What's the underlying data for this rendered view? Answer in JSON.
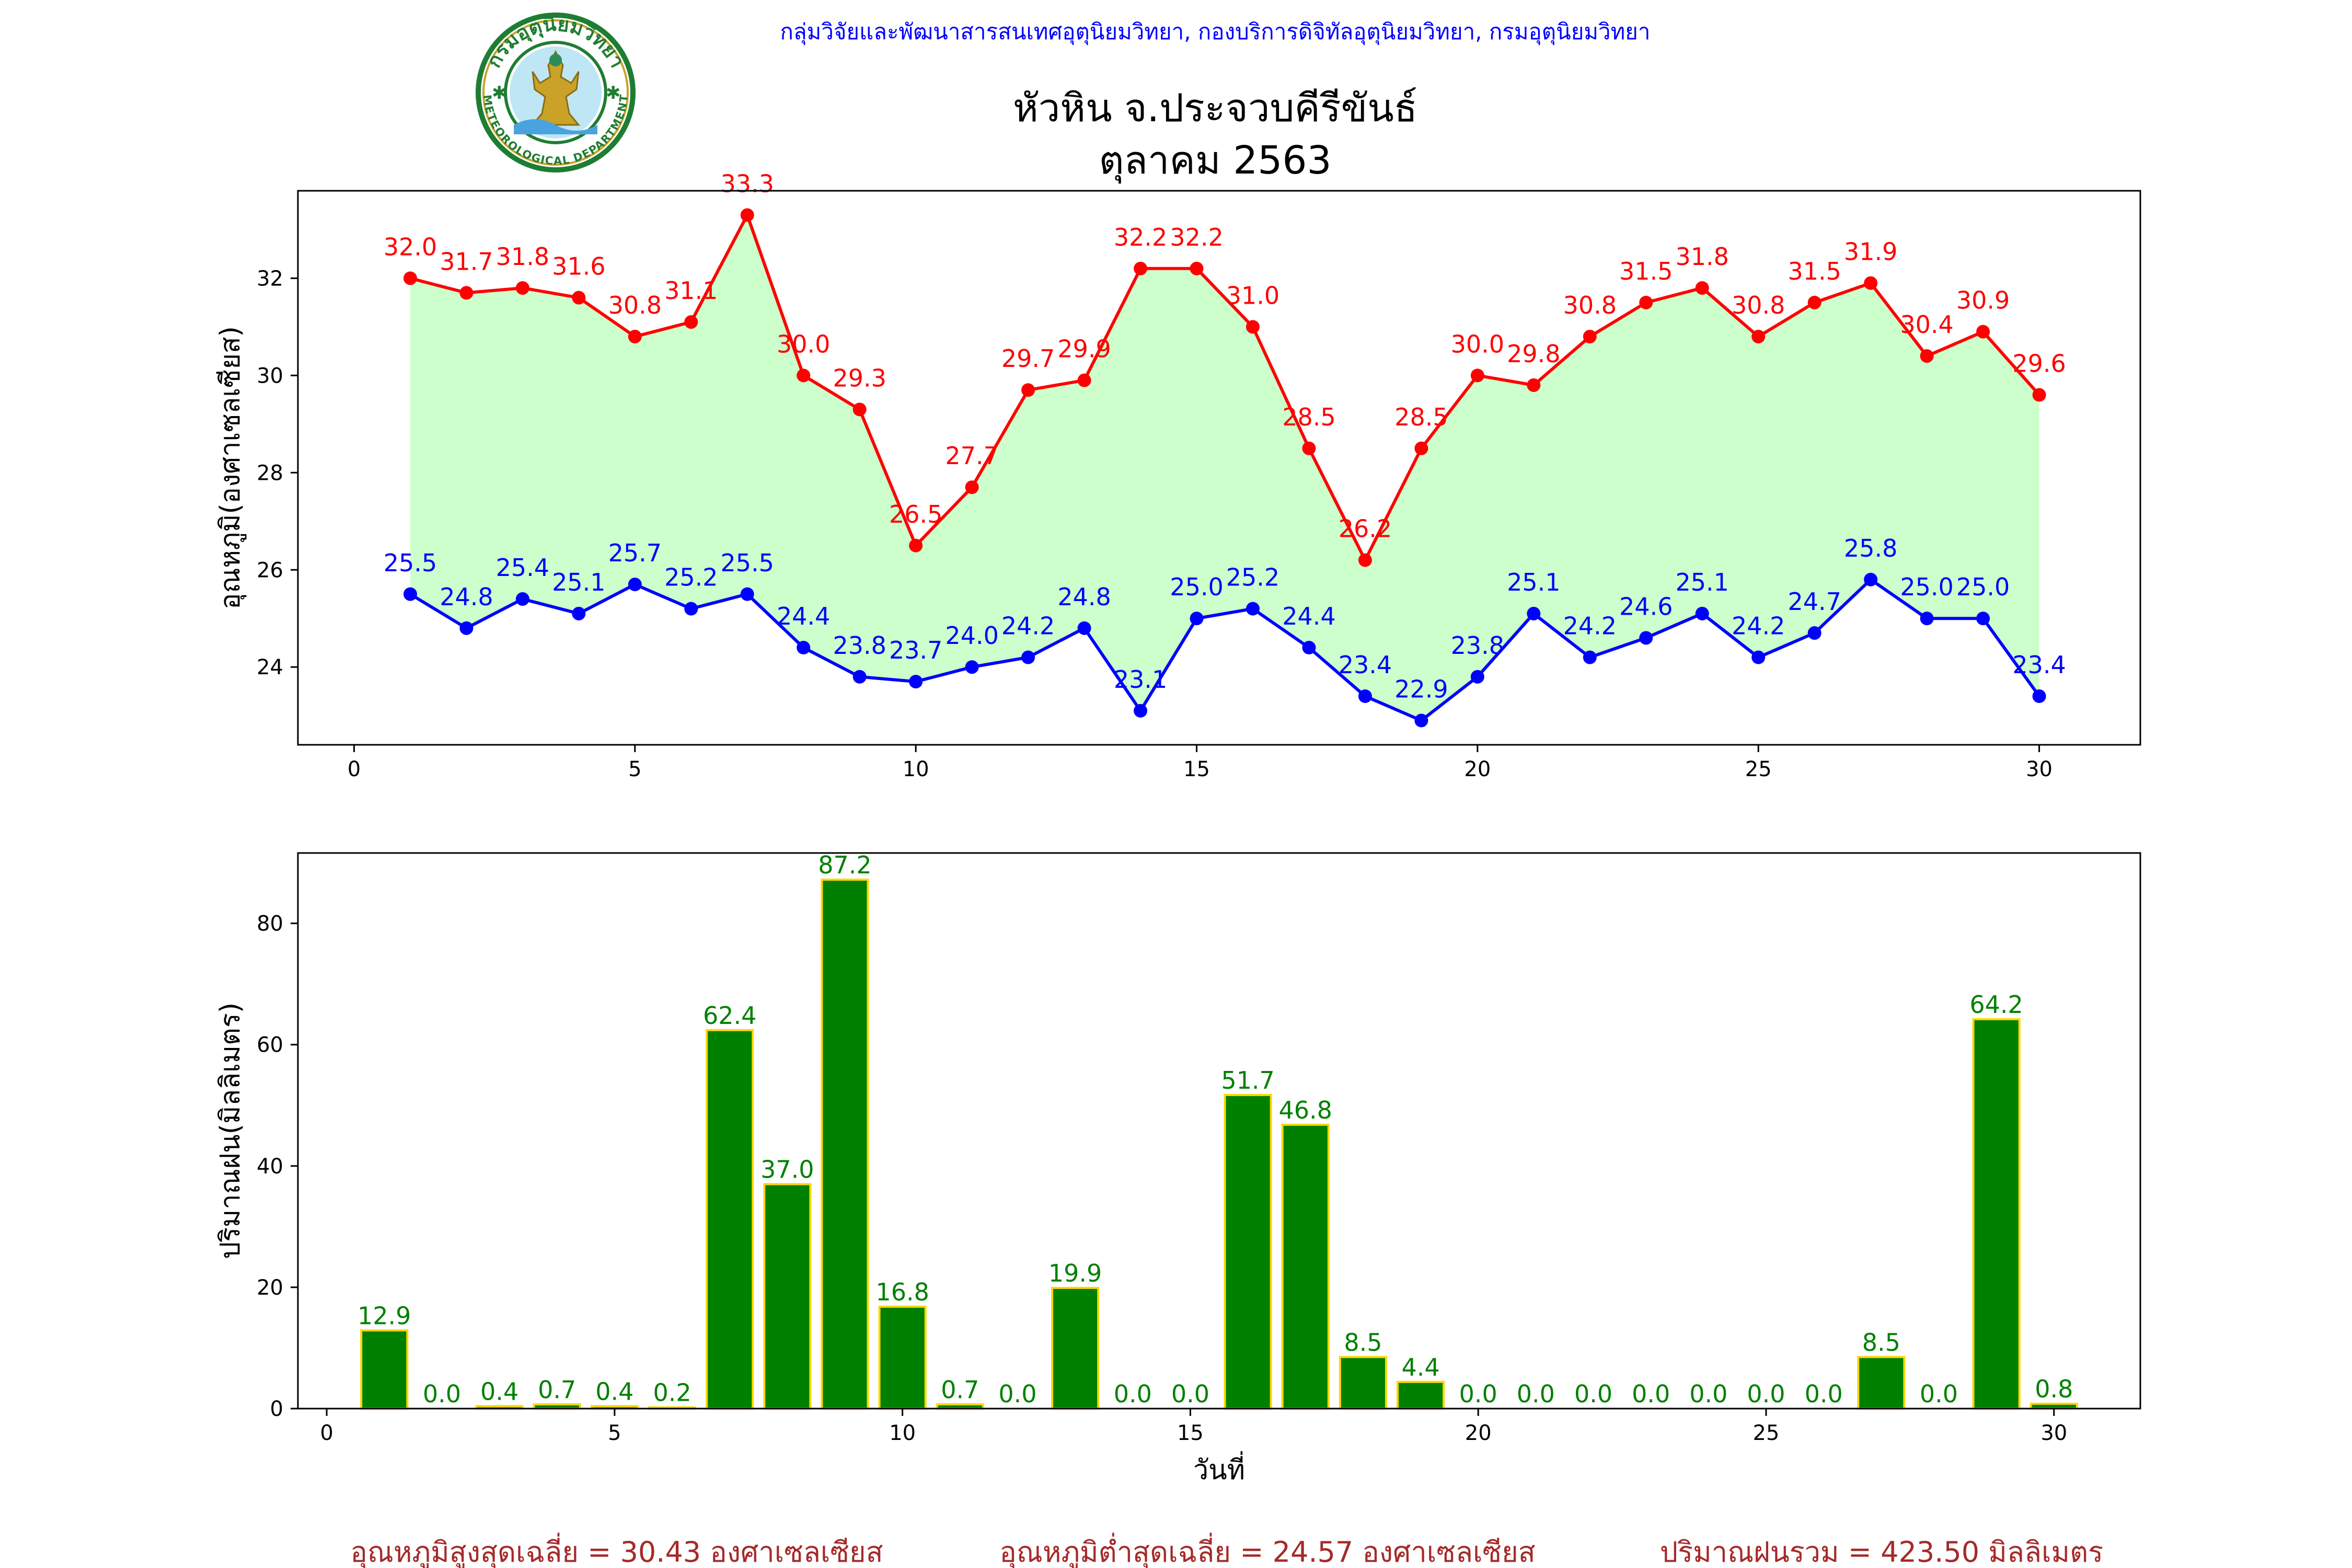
{
  "header": {
    "organization": "กลุ่มวิจัยและพัฒนาสารสนเทศอุตุนิยมวิทยา, กองบริการดิจิทัลอุตุนิยมวิทยา, กรมอุตุนิยมวิทยา",
    "title_line1": "หัวหิน จ.ประจวบคีรีขันธ์",
    "title_line2": "ตุลาคม 2563",
    "logo": {
      "top_text": "กรมอุตุนิยมวิทยา",
      "bottom_text": "METEOROLOGICAL DEPARTMENT",
      "ring_color": "#1e7d32",
      "figure_color": "#c9a227"
    }
  },
  "chart_data": [
    {
      "type": "line",
      "ylabel": "อุณหภูมิ(องศาเซลเซียส)",
      "xlabel": "",
      "xlim": [
        -1,
        31.8
      ],
      "ylim": [
        22.4,
        33.8
      ],
      "xticks": [
        0,
        5,
        10,
        15,
        20,
        25,
        30
      ],
      "yticks": [
        24,
        26,
        28,
        30,
        32
      ],
      "fill_between": "#ccffcc",
      "x": [
        1,
        2,
        3,
        4,
        5,
        6,
        7,
        8,
        9,
        10,
        11,
        12,
        13,
        14,
        15,
        16,
        17,
        18,
        19,
        20,
        21,
        22,
        23,
        24,
        25,
        26,
        27,
        28,
        29,
        30
      ],
      "series": [
        {
          "color": "#ff0000",
          "values": [
            32.0,
            31.7,
            31.8,
            31.6,
            30.8,
            31.1,
            33.3,
            30.0,
            29.3,
            26.5,
            27.7,
            29.7,
            29.9,
            32.2,
            32.2,
            31.0,
            28.5,
            26.2,
            28.5,
            30.0,
            29.8,
            30.8,
            31.5,
            31.8,
            30.8,
            31.5,
            31.9,
            30.4,
            30.9,
            29.6
          ],
          "labels": [
            "32.0",
            "31.7",
            "31.8",
            "31.6",
            "30.8",
            "31.1",
            "33.3",
            "30.0",
            "29.3",
            "26.5",
            "27.7",
            "29.7",
            "29.9",
            "32.2",
            "32.2",
            "31.0",
            "28.5",
            "26.2",
            "28.5",
            "30.0",
            "29.8",
            "30.8",
            "31.5",
            "31.8",
            "30.8",
            "31.5",
            "31.9",
            "30.4",
            "30.9",
            "29.6"
          ]
        },
        {
          "color": "#0000ff",
          "values": [
            25.5,
            24.8,
            25.4,
            25.1,
            25.7,
            25.2,
            25.5,
            24.4,
            23.8,
            23.7,
            24.0,
            24.2,
            24.8,
            23.1,
            25.0,
            25.2,
            24.4,
            23.4,
            22.9,
            23.8,
            25.1,
            24.2,
            24.6,
            25.1,
            24.2,
            24.7,
            25.8,
            25.0,
            25.0,
            23.4
          ],
          "labels": [
            "25.5",
            "24.8",
            "25.4",
            "25.1",
            "25.7",
            "25.2",
            "25.5",
            "24.4",
            "23.8",
            "23.7",
            "24.0",
            "24.2",
            "24.8",
            "23.1",
            "25.0",
            "25.2",
            "24.4",
            "23.4",
            "22.9",
            "23.8",
            "25.1",
            "24.2",
            "24.6",
            "25.1",
            "24.2",
            "24.7",
            "25.8",
            "25.0",
            "25.0",
            "23.4"
          ]
        }
      ]
    },
    {
      "type": "bar",
      "ylabel": "ปริมาณฝน(มิลลิเมตร)",
      "xlabel": "วันที่",
      "xlim": [
        -0.5,
        31.5
      ],
      "ylim": [
        0,
        91.6
      ],
      "xticks": [
        0,
        5,
        10,
        15,
        20,
        25,
        30
      ],
      "yticks": [
        0,
        20,
        40,
        60,
        80
      ],
      "bar_color": "#008000",
      "edge_color": "#ffd700",
      "label_color": "#008000",
      "x": [
        1,
        2,
        3,
        4,
        5,
        6,
        7,
        8,
        9,
        10,
        11,
        12,
        13,
        14,
        15,
        16,
        17,
        18,
        19,
        20,
        21,
        22,
        23,
        24,
        25,
        26,
        27,
        28,
        29,
        30
      ],
      "values": [
        12.9,
        0.0,
        0.4,
        0.7,
        0.4,
        0.2,
        62.4,
        37.0,
        87.2,
        16.8,
        0.7,
        0.0,
        19.9,
        0.0,
        0.0,
        51.7,
        46.8,
        8.5,
        4.4,
        0.0,
        0.0,
        0.0,
        0.0,
        0.0,
        0.0,
        0.0,
        8.5,
        0.0,
        64.2,
        0.8
      ],
      "labels": [
        "12.9",
        "0.0",
        "0.4",
        "0.7",
        "0.4",
        "0.2",
        "62.4",
        "37.0",
        "87.2",
        "16.8",
        "0.7",
        "0.0",
        "19.9",
        "0.0",
        "0.0",
        "51.7",
        "46.8",
        "8.5",
        "4.4",
        "0.0",
        "0.0",
        "0.0",
        "0.0",
        "0.0",
        "0.0",
        "0.0",
        "8.5",
        "0.0",
        "64.2",
        "0.8"
      ]
    }
  ],
  "summary": {
    "avg_max": "อุณหภูมิสูงสุดเฉลี่ย = 30.43 องศาเซลเซียส",
    "avg_min": "อุณหภูมิต่ำสุดเฉลี่ย = 24.57 องศาเซลเซียส",
    "total_rain": "ปริมาณฝนรวม = 423.50 มิลลิเมตร"
  }
}
